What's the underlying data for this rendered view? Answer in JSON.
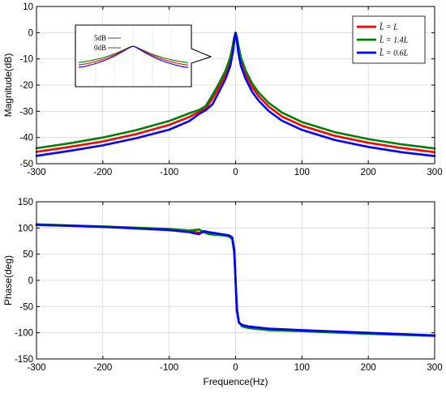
{
  "chart_data": [
    {
      "type": "line",
      "title": "",
      "xlabel": "",
      "ylabel": "Magnitude(dB)",
      "xlim": [
        -300,
        300
      ],
      "ylim": [
        -50,
        10
      ],
      "xticks": [
        "-300",
        "-200",
        "-100",
        "0",
        "100",
        "200",
        "300"
      ],
      "yticks": [
        "10",
        "0",
        "-10",
        "-20",
        "-30",
        "-40",
        "-50"
      ],
      "grid": true,
      "legend_position": "top-right",
      "colors": {
        "red": "#ff0000",
        "green": "#008000",
        "blue": "#0000ff"
      },
      "legend": [
        {
          "label": "L̂ = L",
          "color": "#ff0000"
        },
        {
          "label": "L̂ = 1.4L",
          "color": "#008000"
        },
        {
          "label": "L̂ = 0.6L",
          "color": "#0000ff"
        }
      ],
      "series": [
        {
          "x": [
            -300,
            -250,
            -200,
            -150,
            -100,
            -70,
            -55,
            -45,
            -35,
            -25,
            -15,
            -8,
            -4,
            -2,
            0,
            2,
            4,
            8,
            15,
            25,
            35,
            50,
            70,
            100,
            150,
            200,
            250,
            300
          ],
          "y": [
            -45.5,
            -43.6,
            -41.5,
            -38.7,
            -35.2,
            -32.2,
            -30.2,
            -29.0,
            -25.2,
            -20.8,
            -15.8,
            -10.8,
            -5.8,
            -2.2,
            0,
            -2.2,
            -5.8,
            -10.8,
            -15.8,
            -20.8,
            -24.3,
            -28.2,
            -32.0,
            -35.5,
            -39.4,
            -42.0,
            -44.0,
            -45.6
          ]
        },
        {
          "x": [
            -300,
            -250,
            -200,
            -150,
            -100,
            -70,
            -55,
            -45,
            -35,
            -25,
            -15,
            -8,
            -4,
            -2,
            0,
            2,
            4,
            8,
            15,
            25,
            35,
            50,
            70,
            100,
            150,
            200,
            250,
            300
          ],
          "y": [
            -44.1,
            -42.2,
            -40.0,
            -37.2,
            -33.7,
            -30.8,
            -29.5,
            -28.0,
            -23.8,
            -19.4,
            -14.4,
            -9.4,
            -4.6,
            -1.6,
            0,
            -1.6,
            -4.6,
            -9.4,
            -14.4,
            -19.4,
            -22.9,
            -26.8,
            -30.5,
            -34.1,
            -38.0,
            -40.6,
            -42.6,
            -44.2
          ]
        },
        {
          "x": [
            -300,
            -250,
            -200,
            -150,
            -100,
            -70,
            -55,
            -45,
            -35,
            -25,
            -15,
            -8,
            -4,
            -2,
            0,
            2,
            4,
            8,
            15,
            25,
            35,
            50,
            70,
            100,
            150,
            200,
            250,
            300
          ],
          "y": [
            -47.0,
            -45.1,
            -43.0,
            -40.3,
            -37.0,
            -33.8,
            -31.0,
            -29.6,
            -27.4,
            -22.6,
            -17.6,
            -12.6,
            -7.4,
            -3.2,
            0,
            -3.2,
            -7.4,
            -12.6,
            -17.6,
            -22.6,
            -26.0,
            -29.9,
            -33.6,
            -37.1,
            -41.0,
            -43.6,
            -45.6,
            -47.1
          ]
        }
      ],
      "inset": {
        "annotations": [
          "5dB",
          "0dB"
        ]
      }
    },
    {
      "type": "line",
      "title": "",
      "xlabel": "Frequence(Hz)",
      "ylabel": "Phase(deg)",
      "xlim": [
        -300,
        300
      ],
      "ylim": [
        -150,
        150
      ],
      "xticks": [
        "-300",
        "-200",
        "-100",
        "0",
        "100",
        "200",
        "300"
      ],
      "yticks": [
        "150",
        "100",
        "50",
        "0",
        "-50",
        "-100",
        "-150"
      ],
      "grid": true,
      "series": [
        {
          "x": [
            -300,
            -200,
            -100,
            -70,
            -55,
            -48,
            -40,
            -30,
            -20,
            -10,
            -5,
            -2,
            0,
            2,
            5,
            10,
            20,
            50,
            100,
            200,
            300
          ],
          "y": [
            106,
            102,
            97,
            94,
            91,
            92,
            90,
            88,
            87,
            85,
            80,
            55,
            0,
            -55,
            -80,
            -86,
            -89,
            -93,
            -96,
            -101,
            -106
          ]
        },
        {
          "x": [
            -300,
            -200,
            -100,
            -70,
            -55,
            -48,
            -40,
            -30,
            -20,
            -10,
            -5,
            -2,
            0,
            2,
            5,
            10,
            20,
            50,
            100,
            200,
            300
          ],
          "y": [
            107,
            103,
            98,
            95,
            97,
            92,
            88,
            87,
            86,
            84,
            79,
            52,
            0,
            -52,
            -80,
            -88,
            -91,
            -95,
            -97,
            -102,
            -106
          ]
        },
        {
          "x": [
            -300,
            -200,
            -100,
            -70,
            -55,
            -48,
            -40,
            -30,
            -20,
            -10,
            -5,
            -2,
            0,
            2,
            5,
            10,
            20,
            50,
            100,
            200,
            300
          ],
          "y": [
            106,
            102,
            96,
            92,
            88,
            94,
            92,
            90,
            88,
            86,
            82,
            58,
            0,
            -58,
            -81,
            -85,
            -88,
            -92,
            -95,
            -100,
            -105
          ]
        }
      ]
    }
  ]
}
